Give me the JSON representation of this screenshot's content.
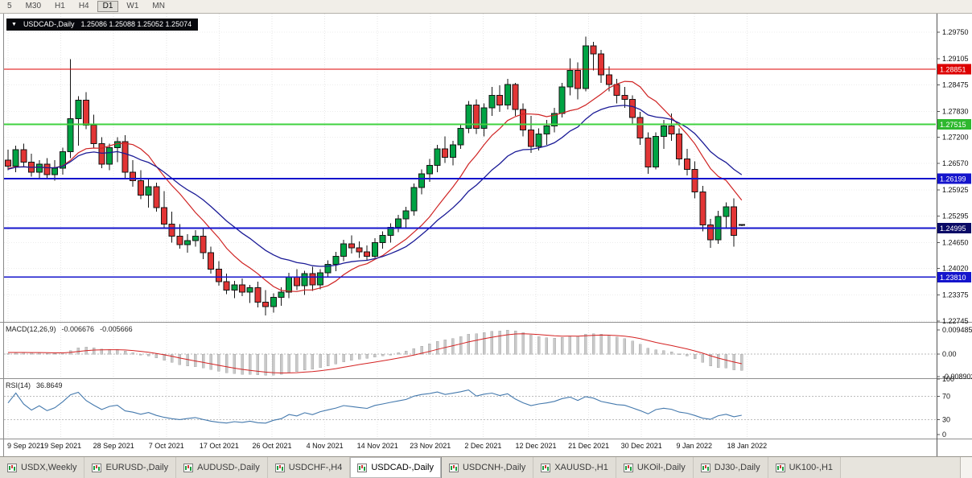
{
  "toolbar": {
    "timeframes": [
      "5",
      "M30",
      "H1",
      "H4",
      "D1",
      "W1",
      "MN"
    ],
    "active": "D1"
  },
  "chart_header": {
    "dropdown_icon": "▼",
    "symbol": "USDCAD-,Daily",
    "ohlc": "1.25086 1.25088 1.25052 1.25074"
  },
  "colors": {
    "bull": "#00a344",
    "bear": "#e23535",
    "outline": "#151515",
    "background": "#ffffff",
    "grid": "#e6e6e6"
  },
  "chart_data": {
    "type": "candlestick",
    "symbol": "USDCAD",
    "timeframe": "Daily",
    "price_axis_ticks": [
      "1.29750",
      "1.29105",
      "1.28475",
      "1.27830",
      "1.27200",
      "1.26570",
      "1.25925",
      "1.25295",
      "1.24650",
      "1.24020",
      "1.23375",
      "1.22745"
    ],
    "time_axis_labels": [
      "9 Sep 2021",
      "19 Sep 2021",
      "28 Sep 2021",
      "7 Oct 2021",
      "17 Oct 2021",
      "26 Oct 2021",
      "4 Nov 2021",
      "14 Nov 2021",
      "23 Nov 2021",
      "2 Dec 2021",
      "12 Dec 2021",
      "21 Dec 2021",
      "30 Dec 2021",
      "9 Jan 2022",
      "18 Jan 2022"
    ],
    "levels": [
      {
        "price": 1.28851,
        "label": "1.28851",
        "line_color": "#dd0000",
        "tag_color": "#dd0000",
        "width": 1.2
      },
      {
        "price": 1.27515,
        "label": "1.27515",
        "line_color": "#3fd23f",
        "tag_color": "#2eb82e",
        "width": 2
      },
      {
        "price": 1.26199,
        "label": "1.26199",
        "line_color": "#1414cc",
        "tag_color": "#1414cc",
        "width": 2
      },
      {
        "price": 1.24995,
        "label": "1.24995",
        "line_color": "#1414cc",
        "tag_color": "#0a0a66",
        "width": 2
      },
      {
        "price": 1.2381,
        "label": "1.23810",
        "line_color": "#1414cc",
        "tag_color": "#1414cc",
        "width": 1.5
      }
    ],
    "overlays": [
      {
        "name": "fast-ma",
        "type": "sma",
        "period": 10,
        "color": "#cf2323"
      },
      {
        "name": "slow-ma",
        "type": "ema",
        "period": 20,
        "color": "#1a1a96"
      }
    ],
    "candles": [
      [
        1.2665,
        1.269,
        1.264,
        1.265
      ],
      [
        1.265,
        1.27,
        1.2635,
        1.269
      ],
      [
        1.269,
        1.2705,
        1.265,
        1.266
      ],
      [
        1.266,
        1.268,
        1.2625,
        1.2635
      ],
      [
        1.2635,
        1.2665,
        1.262,
        1.2655
      ],
      [
        1.2655,
        1.267,
        1.262,
        1.263
      ],
      [
        1.263,
        1.2665,
        1.2615,
        1.2645
      ],
      [
        1.2645,
        1.2695,
        1.263,
        1.2685
      ],
      [
        1.2685,
        1.291,
        1.267,
        1.2765
      ],
      [
        1.2765,
        1.282,
        1.27,
        1.281
      ],
      [
        1.281,
        1.283,
        1.274,
        1.275
      ],
      [
        1.275,
        1.2775,
        1.2695,
        1.2705
      ],
      [
        1.2705,
        1.272,
        1.2645,
        1.2655
      ],
      [
        1.2655,
        1.2705,
        1.264,
        1.2695
      ],
      [
        1.2695,
        1.272,
        1.266,
        1.271
      ],
      [
        1.271,
        1.2725,
        1.262,
        1.2635
      ],
      [
        1.2635,
        1.2665,
        1.26,
        1.2615
      ],
      [
        1.2615,
        1.264,
        1.257,
        1.258
      ],
      [
        1.258,
        1.262,
        1.255,
        1.26
      ],
      [
        1.26,
        1.261,
        1.254,
        1.255
      ],
      [
        1.255,
        1.259,
        1.25,
        1.251
      ],
      [
        1.251,
        1.254,
        1.2465,
        1.248
      ],
      [
        1.248,
        1.251,
        1.245,
        1.246
      ],
      [
        1.246,
        1.2485,
        1.244,
        1.247
      ],
      [
        1.247,
        1.2495,
        1.2455,
        1.248
      ],
      [
        1.248,
        1.25,
        1.2425,
        1.244
      ],
      [
        1.244,
        1.2455,
        1.239,
        1.24
      ],
      [
        1.24,
        1.242,
        1.236,
        1.237
      ],
      [
        1.237,
        1.239,
        1.234,
        1.235
      ],
      [
        1.235,
        1.2372,
        1.233,
        1.2362
      ],
      [
        1.2362,
        1.2378,
        1.2335,
        1.2345
      ],
      [
        1.2345,
        1.2362,
        1.2318,
        1.2355
      ],
      [
        1.2355,
        1.237,
        1.2308,
        1.232
      ],
      [
        1.232,
        1.235,
        1.2288,
        1.231
      ],
      [
        1.231,
        1.2342,
        1.2295,
        1.2332
      ],
      [
        1.2332,
        1.2356,
        1.2312,
        1.2345
      ],
      [
        1.2345,
        1.2392,
        1.233,
        1.2382
      ],
      [
        1.2382,
        1.24,
        1.235,
        1.236
      ],
      [
        1.236,
        1.2396,
        1.2338,
        1.239
      ],
      [
        1.239,
        1.2406,
        1.2348,
        1.2362
      ],
      [
        1.2362,
        1.24,
        1.2352,
        1.2392
      ],
      [
        1.2392,
        1.2422,
        1.238,
        1.2412
      ],
      [
        1.2412,
        1.2442,
        1.2395,
        1.2432
      ],
      [
        1.2432,
        1.2472,
        1.242,
        1.2462
      ],
      [
        1.2462,
        1.2482,
        1.2438,
        1.2452
      ],
      [
        1.2452,
        1.2468,
        1.2428,
        1.2442
      ],
      [
        1.2442,
        1.2458,
        1.2422,
        1.2432
      ],
      [
        1.2432,
        1.2475,
        1.2428,
        1.2465
      ],
      [
        1.2465,
        1.2492,
        1.245,
        1.2482
      ],
      [
        1.2482,
        1.2512,
        1.2465,
        1.2502
      ],
      [
        1.2502,
        1.2532,
        1.249,
        1.2522
      ],
      [
        1.2522,
        1.2552,
        1.2502,
        1.2542
      ],
      [
        1.2542,
        1.2608,
        1.253,
        1.2598
      ],
      [
        1.2598,
        1.2642,
        1.2582,
        1.2632
      ],
      [
        1.2632,
        1.2668,
        1.2612,
        1.2652
      ],
      [
        1.2652,
        1.2702,
        1.2635,
        1.2692
      ],
      [
        1.2692,
        1.2722,
        1.2658,
        1.2672
      ],
      [
        1.2672,
        1.2712,
        1.2652,
        1.2702
      ],
      [
        1.2702,
        1.2752,
        1.2692,
        1.2742
      ],
      [
        1.2742,
        1.2808,
        1.273,
        1.2798
      ],
      [
        1.2798,
        1.2812,
        1.2728,
        1.2742
      ],
      [
        1.2742,
        1.2802,
        1.2722,
        1.2792
      ],
      [
        1.2792,
        1.2842,
        1.2772,
        1.2822
      ],
      [
        1.2822,
        1.2846,
        1.2782,
        1.2798
      ],
      [
        1.2798,
        1.2862,
        1.2788,
        1.2848
      ],
      [
        1.2848,
        1.2852,
        1.2772,
        1.2788
      ],
      [
        1.2788,
        1.2802,
        1.2722,
        1.2738
      ],
      [
        1.2738,
        1.2772,
        1.2682,
        1.2698
      ],
      [
        1.2698,
        1.2742,
        1.2688,
        1.2728
      ],
      [
        1.2728,
        1.2762,
        1.2702,
        1.2748
      ],
      [
        1.2748,
        1.2792,
        1.2732,
        1.2778
      ],
      [
        1.2778,
        1.2852,
        1.2768,
        1.2842
      ],
      [
        1.2842,
        1.2912,
        1.2822,
        1.2882
      ],
      [
        1.2882,
        1.2902,
        1.2812,
        1.2838
      ],
      [
        1.2838,
        1.2964,
        1.2832,
        1.2942
      ],
      [
        1.2942,
        1.2952,
        1.2882,
        1.2922
      ],
      [
        1.2922,
        1.2932,
        1.2852,
        1.2872
      ],
      [
        1.2872,
        1.2892,
        1.2832,
        1.2848
      ],
      [
        1.2848,
        1.2862,
        1.2802,
        1.2822
      ],
      [
        1.2822,
        1.2842,
        1.2792,
        1.2812
      ],
      [
        1.2812,
        1.2822,
        1.2752,
        1.2768
      ],
      [
        1.2768,
        1.2782,
        1.2702,
        1.2718
      ],
      [
        1.2718,
        1.2732,
        1.2632,
        1.2648
      ],
      [
        1.2648,
        1.2732,
        1.2642,
        1.2722
      ],
      [
        1.2722,
        1.2762,
        1.2692,
        1.2748
      ],
      [
        1.2748,
        1.2778,
        1.2712,
        1.2728
      ],
      [
        1.2728,
        1.2742,
        1.2652,
        1.2668
      ],
      [
        1.2668,
        1.2692,
        1.2628,
        1.2642
      ],
      [
        1.2642,
        1.2662,
        1.2572,
        1.2588
      ],
      [
        1.2588,
        1.2602,
        1.2492,
        1.2508
      ],
      [
        1.2508,
        1.2522,
        1.2452,
        1.2472
      ],
      [
        1.2472,
        1.2542,
        1.2462,
        1.2528
      ],
      [
        1.2528,
        1.2562,
        1.2502,
        1.2552
      ],
      [
        1.2552,
        1.2572,
        1.2455,
        1.2482
      ],
      [
        1.25086,
        1.25088,
        1.25052,
        1.25074
      ]
    ]
  },
  "macd": {
    "label": "MACD(12,26,9)",
    "value_main": "-0.006676",
    "value_signal": "-0.005666",
    "axis_ticks": [
      "0.009485",
      "0.00",
      "-0.008902"
    ],
    "histogram_color": "#c9c9c9",
    "signal_color": "#d42222",
    "params": [
      12,
      26,
      9
    ]
  },
  "rsi": {
    "label": "RSI(14)",
    "value": "36.8649",
    "axis_ticks": [
      "100",
      "70",
      "30",
      "0"
    ],
    "levels": [
      70,
      30
    ],
    "line_color": "#4479ad"
  },
  "tabs": {
    "items": [
      "USDX,Weekly",
      "EURUSD-,Daily",
      "AUDUSD-,Daily",
      "USDCHF-,H4",
      "USDCAD-,Daily",
      "USDCNH-,Daily",
      "XAUUSD-,H1",
      "UKOil-,Daily",
      "DJ30-,Daily",
      "UK100-,H1"
    ],
    "active": "USDCAD-,Daily"
  }
}
